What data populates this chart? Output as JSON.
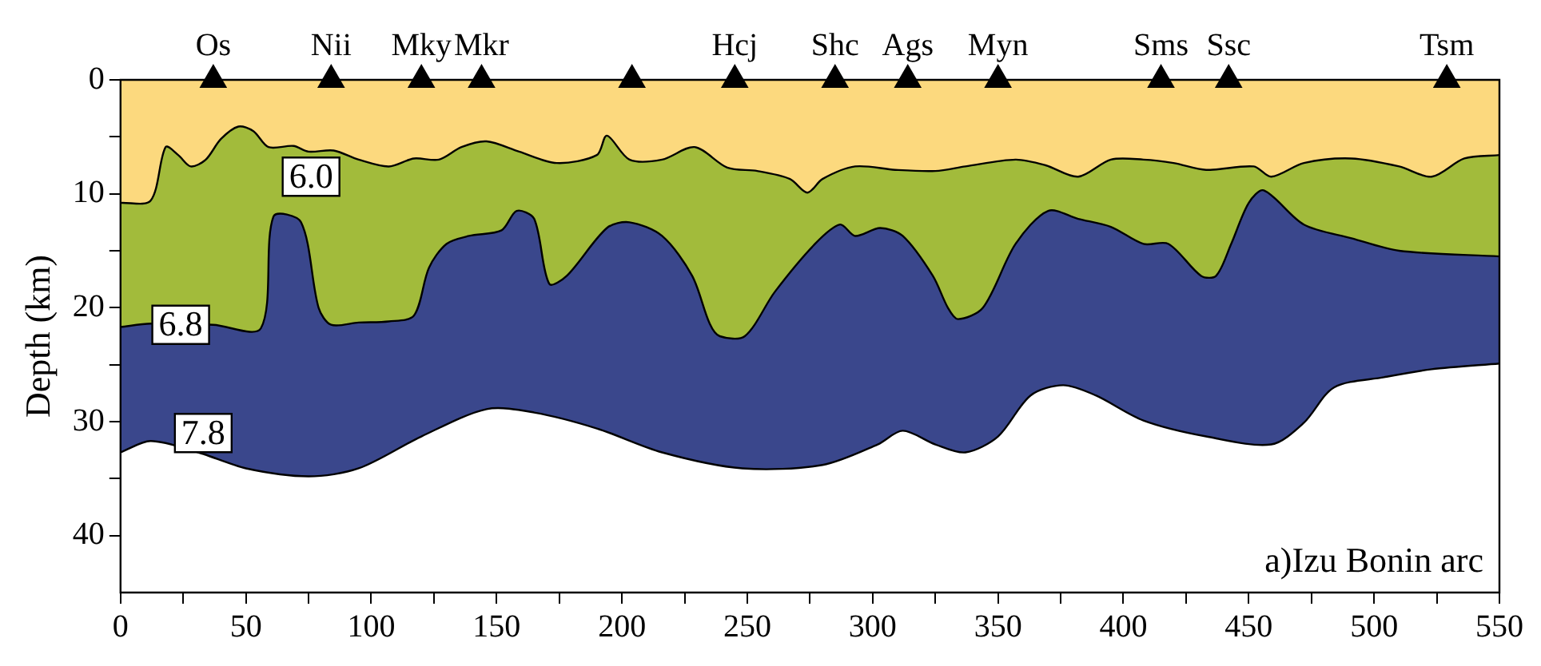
{
  "chart_data": {
    "type": "area",
    "ylabel": "Depth (km)",
    "xlim": [
      0,
      550
    ],
    "xticks": [
      0,
      {
        "value": 25,
        "label": null
      },
      50,
      {
        "value": 75,
        "label": null
      },
      100,
      {
        "value": 125,
        "label": null
      },
      150,
      {
        "value": 175,
        "label": null
      },
      200,
      {
        "value": 225,
        "label": null
      },
      250,
      {
        "value": 275,
        "label": null
      },
      300,
      {
        "value": 325,
        "label": null
      },
      350,
      {
        "value": 375,
        "label": null
      },
      400,
      {
        "value": 425,
        "label": null
      },
      450,
      {
        "value": 475,
        "label": null
      },
      500,
      {
        "value": 525,
        "label": null
      },
      550
    ],
    "ylim": [
      45,
      0
    ],
    "yticks": [
      0,
      {
        "value": 5,
        "label": null
      },
      10,
      {
        "value": 15,
        "label": null
      },
      20,
      {
        "value": 25,
        "label": null
      },
      30,
      {
        "value": 35,
        "label": null
      },
      40
    ],
    "series": [
      {
        "type": "scatter",
        "marker": "triangle",
        "color": "#000000",
        "x": [
          37,
          84,
          120,
          144,
          204,
          245,
          285,
          314,
          350,
          415,
          442,
          529
        ],
        "values": [
          0,
          0,
          0,
          0,
          0,
          0,
          0,
          0,
          0,
          0,
          0,
          0
        ]
      },
      {
        "color": "#fcd97e",
        "x": [
          0,
          12,
          18,
          23,
          28,
          34,
          40,
          47,
          53,
          59,
          69,
          75,
          85,
          95,
          107,
          117,
          127,
          136,
          146,
          159,
          174,
          190,
          194,
          203,
          216,
          229,
          242,
          254,
          267,
          274,
          280,
          293,
          309,
          325,
          337,
          357,
          369,
          382,
          395,
          408,
          420,
          433,
          452,
          459,
          472,
          491,
          510,
          523,
          536,
          550
        ],
        "values": [
          10.8,
          10.6,
          5.9,
          6.6,
          7.6,
          7.0,
          5.2,
          4.1,
          4.5,
          5.9,
          5.8,
          6.3,
          6.2,
          7.0,
          7.6,
          6.9,
          7.0,
          5.9,
          5.4,
          6.3,
          7.3,
          6.6,
          4.9,
          7.0,
          7.0,
          5.9,
          7.7,
          8.0,
          8.7,
          9.9,
          8.7,
          7.6,
          7.9,
          8.0,
          7.6,
          7.0,
          7.5,
          8.5,
          7.0,
          7.0,
          7.3,
          7.9,
          7.6,
          8.5,
          7.3,
          6.9,
          7.6,
          8.5,
          6.9,
          6.6
        ]
      },
      {
        "color": "#a2bb3b",
        "x": [
          0,
          12,
          37,
          56,
          61,
          72,
          79,
          84,
          95,
          107,
          117,
          123,
          130,
          139,
          152,
          158,
          165,
          171,
          178,
          194,
          203,
          216,
          228,
          235,
          239,
          249,
          261,
          277,
          287,
          293,
          303,
          312,
          324,
          330,
          334,
          344,
          357,
          370,
          382,
          395,
          408,
          418,
          431,
          437,
          443,
          450,
          456,
          472,
          491,
          510,
          550
        ],
        "values": [
          21.7,
          21.4,
          21.5,
          21.8,
          12.0,
          12.5,
          20.0,
          21.5,
          21.3,
          21.2,
          20.7,
          16.5,
          14.4,
          13.7,
          13.2,
          11.5,
          12.2,
          17.9,
          17.2,
          13.0,
          12.5,
          13.7,
          17.2,
          21.4,
          22.5,
          22.5,
          18.6,
          14.4,
          12.7,
          13.7,
          13.0,
          13.7,
          17.2,
          20.0,
          21.0,
          20.0,
          14.4,
          11.5,
          12.2,
          12.9,
          14.4,
          14.4,
          17.2,
          17.2,
          14.4,
          10.8,
          9.7,
          12.7,
          13.9,
          15.0,
          15.5
        ]
      },
      {
        "color": "#3a478c",
        "x": [
          0,
          12,
          31,
          50,
          75,
          95,
          120,
          146,
          165,
          190,
          216,
          248,
          280,
          302,
          312,
          325,
          337,
          350,
          363,
          376,
          389,
          408,
          433,
          459,
          472,
          484,
          504,
          523,
          550
        ],
        "values": [
          32.7,
          31.7,
          32.7,
          34.1,
          34.8,
          34.1,
          31.3,
          28.9,
          29.2,
          30.6,
          32.7,
          34.1,
          33.8,
          32.0,
          30.8,
          32.0,
          32.7,
          31.3,
          27.7,
          26.8,
          27.7,
          29.9,
          31.3,
          32.0,
          30.1,
          27.0,
          26.1,
          25.4,
          24.9
        ]
      }
    ],
    "annotations": [
      {
        "text": "Os",
        "x": 37,
        "y": 0
      },
      {
        "text": "Nii",
        "x": 84,
        "y": 0
      },
      {
        "text": "Mky",
        "x": 120,
        "y": 0
      },
      {
        "text": "Mkr",
        "x": 144,
        "y": 0
      },
      {
        "text": "Hcj",
        "x": 245,
        "y": 0
      },
      {
        "text": "Shc",
        "x": 285,
        "y": 0
      },
      {
        "text": "Ags",
        "x": 314,
        "y": 0
      },
      {
        "text": "Myn",
        "x": 350,
        "y": 0
      },
      {
        "text": "Sms",
        "x": 415,
        "y": 0
      },
      {
        "text": "Ssc",
        "x": 442,
        "y": 0
      },
      {
        "text": "Tsm",
        "x": 529,
        "y": 0
      },
      {
        "text": "6.0",
        "x": 76,
        "y": 8.5
      },
      {
        "text": "6.8",
        "x": 24,
        "y": 21.5
      },
      {
        "text": "7.8",
        "x": 33,
        "y": 31
      },
      "a)Izu Bonin arc"
    ]
  }
}
